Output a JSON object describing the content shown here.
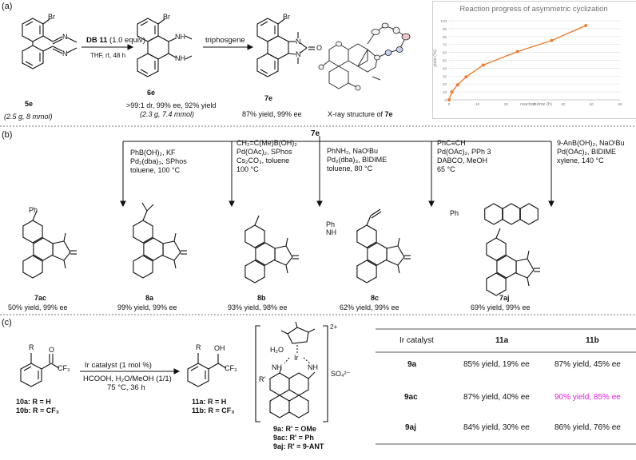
{
  "panel_a": {
    "label": "(a)",
    "reagent": "DB 11",
    "reagent_suffix": "(1.0 equiv)",
    "cond1": "THF, rt, 48 h",
    "reagent2": "triphosgene",
    "start_id": "5e",
    "start_amount": "(2.5 g, 8 mmol)",
    "inter_id": "6e",
    "inter_result1": ">99:1 dr, 99% ee, 92% yield",
    "inter_result2": "(2.3 g, 7.4 mmol)",
    "prod_id": "7e",
    "prod_result": "87% yield, 99% ee",
    "xray_caption_prefix": "X-ray structure of ",
    "xray_caption_id": "7e",
    "atoms": {
      "br": "Br",
      "nh": "NH",
      "n": "N",
      "o": "O"
    }
  },
  "chart_data": {
    "type": "line",
    "title": "Reaction progress of asymmetric cyclization",
    "xlabel": "reaction time (h)",
    "ylabel": "yield (%)",
    "xlim": [
      0,
      60
    ],
    "ylim": [
      0,
      100
    ],
    "xticks": [
      0,
      10,
      20,
      30,
      40,
      50,
      60
    ],
    "yticks": [
      0,
      10,
      20,
      30,
      40,
      50,
      60,
      70,
      80,
      90,
      100
    ],
    "grid": true,
    "x": [
      0,
      1,
      3,
      6,
      12,
      24,
      36,
      48
    ],
    "y": [
      0,
      10,
      19,
      29,
      44,
      61,
      75,
      94
    ],
    "color": "#ED7D31"
  },
  "panel_b": {
    "label": "(b)",
    "start_id": "7e",
    "conditions": [
      {
        "lines": [
          "PhB(OH)₂, KF",
          "Pd₂(dba)₃, SPhos",
          "toluene, 100 °C"
        ]
      },
      {
        "lines": [
          "CH₂=C(Me)B(OH)₂",
          "Pd(OAc)₂, SPhos",
          "Cs₂CO₃, toluene",
          "100 °C"
        ]
      },
      {
        "lines": [
          "PhNH₂, NaOᵗBu",
          "Pd₂(dba)₃, BIDIME",
          "toluene, 80 °C"
        ]
      },
      {
        "lines": [
          "PhC≡CH",
          "Pd(OAc)₂, PPh 3",
          "DABCO, MeOH",
          "65 °C"
        ]
      },
      {
        "lines": [
          "9-AnB(OH)₂, NaOᵗBu",
          "Pd(OAc)₂, BIDIME",
          "xylene, 140 °C"
        ]
      }
    ],
    "products": [
      {
        "id": "7ac",
        "result": "50% yield, 99% ee",
        "sub": "Ph"
      },
      {
        "id": "8a",
        "result": "99% yield, 99% ee",
        "sub": ""
      },
      {
        "id": "8b",
        "result": "93% yield, 98% ee",
        "sub": "Ph\nNH"
      },
      {
        "id": "8c",
        "result": "62% yield, 99% ee",
        "sub": "Ph"
      },
      {
        "id": "7aj",
        "result": "69% yield, 99% ee",
        "sub": ""
      }
    ]
  },
  "panel_c": {
    "label": "(c)",
    "reagent": "Ir catalyst (1 mol %)",
    "cond1": "HCOOH, H₂O/MeOH (1/1)",
    "cond2": "75 °C, 36 h",
    "sm_labels": [
      "10a: R = H",
      "10b: R = CF₃"
    ],
    "prod_labels": [
      "11a: R = H",
      "11b: R = CF₃"
    ],
    "cat_labels": [
      "9a: R' = OMe",
      "9ac: R' = Ph",
      "9aj: R' = 9-ANT"
    ],
    "charge": "2+",
    "counterion": "SO₄²⁻",
    "atoms": {
      "r": "R",
      "o": "O",
      "cf3": "CF₃",
      "oh": "OH",
      "h2o": "H₂O",
      "ir": "Ir",
      "nh": "NH",
      "rp": "R'"
    },
    "table": {
      "headers": [
        "Ir catalyst",
        "11a",
        "11b"
      ],
      "rows": [
        {
          "cat": "9a",
          "a": "85% yield, 19% ee",
          "b": "87% yield, 45% ee",
          "highlight": false
        },
        {
          "cat": "9ac",
          "a": "87% yield, 40% ee",
          "b": "90% yield, 85% ee",
          "highlight": true
        },
        {
          "cat": "9aj",
          "a": "84% yield, 30% ee",
          "b": "86% yield, 76% ee",
          "highlight": false
        }
      ],
      "highlight_color": "#E020E0"
    }
  }
}
